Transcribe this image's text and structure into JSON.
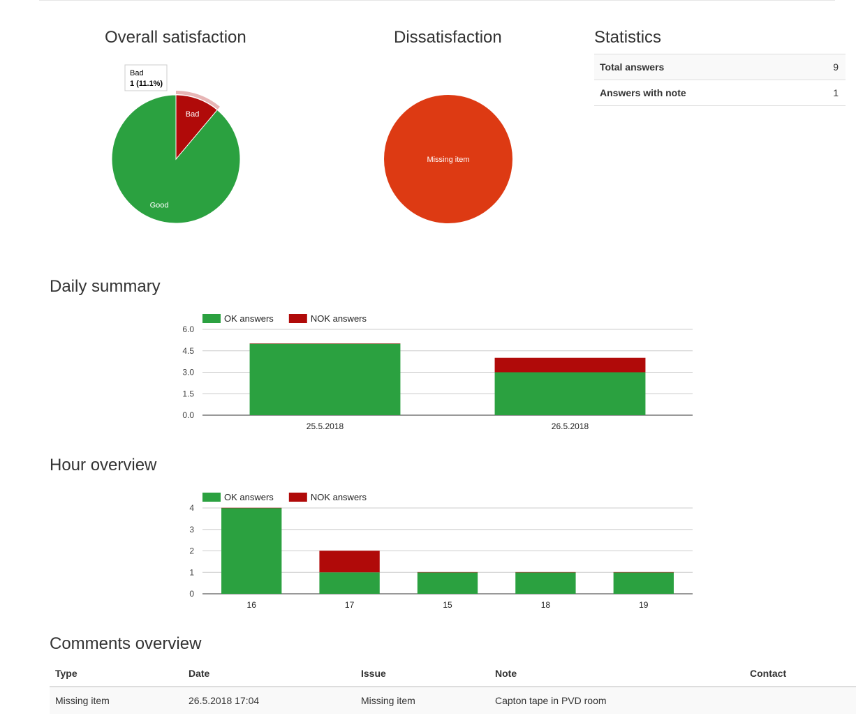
{
  "headings": {
    "overall": "Overall satisfaction",
    "dissatisfaction": "Dissatisfaction",
    "statistics": "Statistics",
    "daily": "Daily summary",
    "hour": "Hour overview",
    "comments": "Comments overview"
  },
  "statistics": {
    "rows": [
      {
        "label": "Total answers",
        "value": "9"
      },
      {
        "label": "Answers with note",
        "value": "1"
      }
    ]
  },
  "tooltip": {
    "title": "Bad",
    "value": "1 (11.1%)"
  },
  "colors": {
    "ok": "#2ba140",
    "nok": "#b00a09",
    "missing": "#dd3a13",
    "grid": "#dddddd"
  },
  "chart_data": [
    {
      "type": "pie",
      "title": "Overall satisfaction",
      "slices": [
        {
          "label": "Good",
          "value": 8,
          "color": "#2ba140"
        },
        {
          "label": "Bad",
          "value": 1,
          "color": "#b00a09"
        }
      ]
    },
    {
      "type": "pie",
      "title": "Dissatisfaction",
      "slices": [
        {
          "label": "Missing item",
          "value": 1,
          "color": "#dd3a13"
        }
      ]
    },
    {
      "type": "bar",
      "stacked": true,
      "title": "Daily summary",
      "categories": [
        "25.5.2018",
        "26.5.2018"
      ],
      "series": [
        {
          "name": "OK answers",
          "values": [
            5,
            3
          ],
          "color": "#2ba140"
        },
        {
          "name": "NOK answers",
          "values": [
            0,
            1
          ],
          "color": "#b00a09"
        }
      ],
      "ylim": [
        0,
        6
      ],
      "yticks": [
        "0.0",
        "1.5",
        "3.0",
        "4.5",
        "6.0"
      ],
      "legend": "top",
      "grid": true
    },
    {
      "type": "bar",
      "stacked": true,
      "title": "Hour overview",
      "categories": [
        "16",
        "17",
        "15",
        "18",
        "19"
      ],
      "series": [
        {
          "name": "OK answers",
          "values": [
            4,
            1,
            1,
            1,
            1
          ],
          "color": "#2ba140"
        },
        {
          "name": "NOK answers",
          "values": [
            0,
            1,
            0,
            0,
            0
          ],
          "color": "#b00a09"
        }
      ],
      "ylim": [
        0,
        4
      ],
      "yticks": [
        "0",
        "1",
        "2",
        "3",
        "4"
      ],
      "legend": "top",
      "grid": true
    }
  ],
  "comments": {
    "columns": [
      "Type",
      "Date",
      "Issue",
      "Note",
      "Contact"
    ],
    "rows": [
      [
        "Missing item",
        "26.5.2018 17:04",
        "Missing item",
        "Capton tape in PVD room",
        ""
      ]
    ]
  }
}
